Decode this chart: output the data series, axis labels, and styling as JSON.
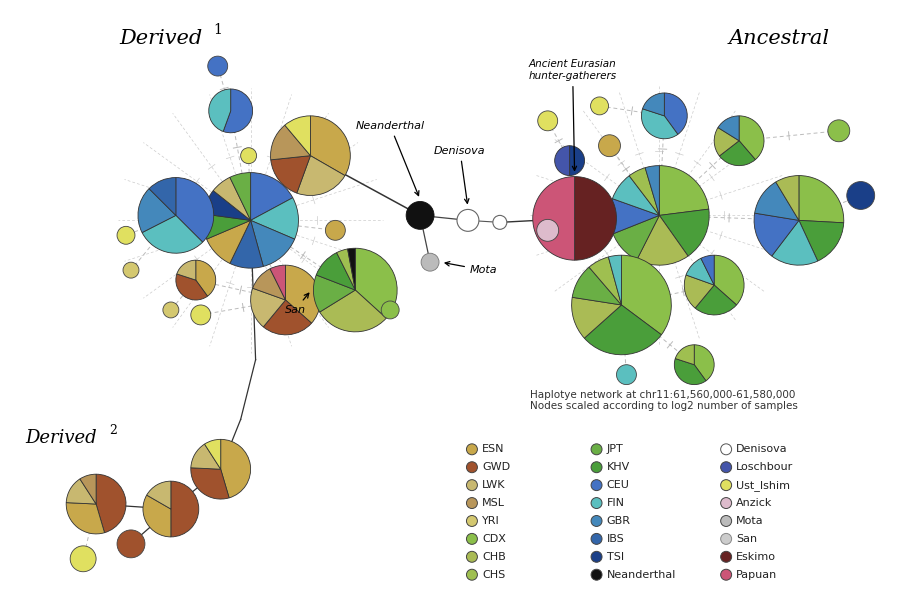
{
  "colors": {
    "ESN": "#C8A84B",
    "GWD": "#A0522D",
    "LWK": "#C8B870",
    "MSL": "#B8965A",
    "YRI": "#D4C870",
    "CDX": "#8BBF4A",
    "CHB": "#AABB55",
    "CHS": "#9FBF50",
    "JPT": "#6AAF45",
    "KHV": "#4A9E3A",
    "CEU": "#4472C4",
    "FIN": "#5BBFBF",
    "GBR": "#4488BB",
    "IBS": "#3366AA",
    "TSI": "#1A3F88",
    "Neanderthal": "#111111",
    "Denisova": "#FFFFFF",
    "Loschbour": "#4455AA",
    "Ust_Ishim": "#E0E060",
    "Anzick": "#DDBBCC",
    "Mota": "#BBBBBB",
    "San": "#CCCCCC",
    "Eskimo": "#662222",
    "Papuan": "#CC5577",
    "bg": "#FFFFFF"
  },
  "legend": [
    {
      "label": "ESN",
      "color": "#C8A84B",
      "col": 0
    },
    {
      "label": "GWD",
      "color": "#A0522D",
      "col": 0
    },
    {
      "label": "LWK",
      "color": "#C8B870",
      "col": 0
    },
    {
      "label": "MSL",
      "color": "#B8965A",
      "col": 0
    },
    {
      "label": "YRI",
      "color": "#D4C870",
      "col": 0
    },
    {
      "label": "CDX",
      "color": "#8BBF4A",
      "col": 0
    },
    {
      "label": "CHB",
      "color": "#AABB55",
      "col": 0
    },
    {
      "label": "CHS",
      "color": "#9FBF50",
      "col": 0
    },
    {
      "label": "JPT",
      "color": "#6AAF45",
      "col": 1
    },
    {
      "label": "KHV",
      "color": "#4A9E3A",
      "col": 1
    },
    {
      "label": "CEU",
      "color": "#4472C4",
      "col": 1
    },
    {
      "label": "FIN",
      "color": "#5BBFBF",
      "col": 1
    },
    {
      "label": "GBR",
      "color": "#4488BB",
      "col": 1
    },
    {
      "label": "IBS",
      "color": "#3366AA",
      "col": 1
    },
    {
      "label": "TSI",
      "color": "#1A3F88",
      "col": 1
    },
    {
      "label": "Neanderthal",
      "color": "#111111",
      "col": 1
    },
    {
      "label": "Denisova",
      "color": "#FFFFFF",
      "edge": "#555555",
      "col": 2
    },
    {
      "label": "Loschbour",
      "color": "#4455AA",
      "col": 2
    },
    {
      "label": "Ust_Ishim",
      "color": "#E0E060",
      "col": 2
    },
    {
      "label": "Anzick",
      "color": "#DDBBCC",
      "col": 2
    },
    {
      "label": "Mota",
      "color": "#BBBBBB",
      "col": 2
    },
    {
      "label": "San",
      "color": "#CCCCCC",
      "edge": "#888888",
      "col": 2
    },
    {
      "label": "Eskimo",
      "color": "#662222",
      "col": 2
    },
    {
      "label": "Papuan",
      "color": "#CC5577",
      "col": 2
    }
  ],
  "subtitle": "Haplotye network at chr11:61,560,000-61,580,000\nNodes scaled according to log2 number of samples"
}
